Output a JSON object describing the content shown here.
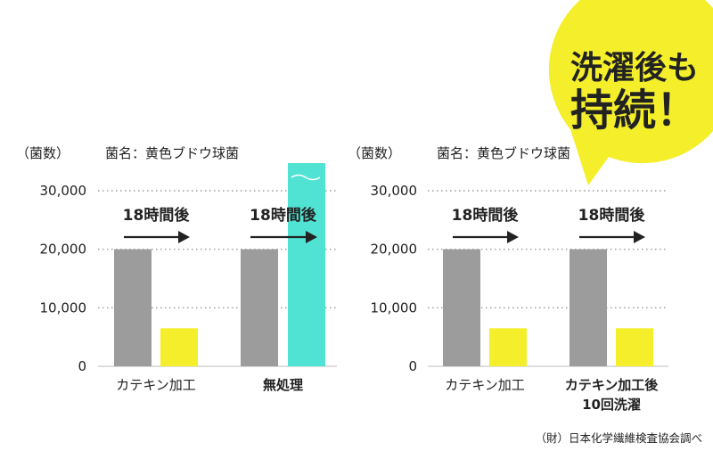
{
  "bubble": {
    "line1": "洗濯後も",
    "line2": "持続！",
    "fill": "#f4ef2a",
    "text_color": "#c0282f"
  },
  "source_note": "（財）日本化学繊維検査協会調べ",
  "colors": {
    "before": "#9c9c9c",
    "after_treated": "#f4ef2a",
    "after_untreated": "#50e2d2"
  },
  "chart_data": [
    {
      "type": "bar",
      "unit_label": "（菌数）",
      "organism_label": "菌名：黄色ブドウ球菌",
      "yticks": [
        "30,000",
        "20,000",
        "10,000",
        "0"
      ],
      "ylim": [
        0,
        30000
      ],
      "arrow_label": "18時間後",
      "groups": [
        {
          "label": [
            "カテキン加工"
          ],
          "bold": false,
          "values": [
            20000,
            6500
          ],
          "kinds": [
            "before",
            "after_treated"
          ],
          "break": false
        },
        {
          "label": [
            "無処理"
          ],
          "bold": true,
          "values": [
            20000,
            36000
          ],
          "kinds": [
            "before",
            "after_untreated"
          ],
          "break": true
        }
      ]
    },
    {
      "type": "bar",
      "unit_label": "（菌数）",
      "organism_label": "菌名：黄色ブドウ球菌",
      "yticks": [
        "30,000",
        "20,000",
        "10,000",
        "0"
      ],
      "ylim": [
        0,
        30000
      ],
      "arrow_label": "18時間後",
      "groups": [
        {
          "label": [
            "カテキン加工"
          ],
          "bold": false,
          "values": [
            20000,
            6500
          ],
          "kinds": [
            "before",
            "after_treated"
          ],
          "break": false
        },
        {
          "label": [
            "カテキン加工後",
            "10回洗濯"
          ],
          "bold": true,
          "values": [
            20000,
            6500
          ],
          "kinds": [
            "before",
            "after_treated"
          ],
          "break": false
        }
      ]
    }
  ]
}
